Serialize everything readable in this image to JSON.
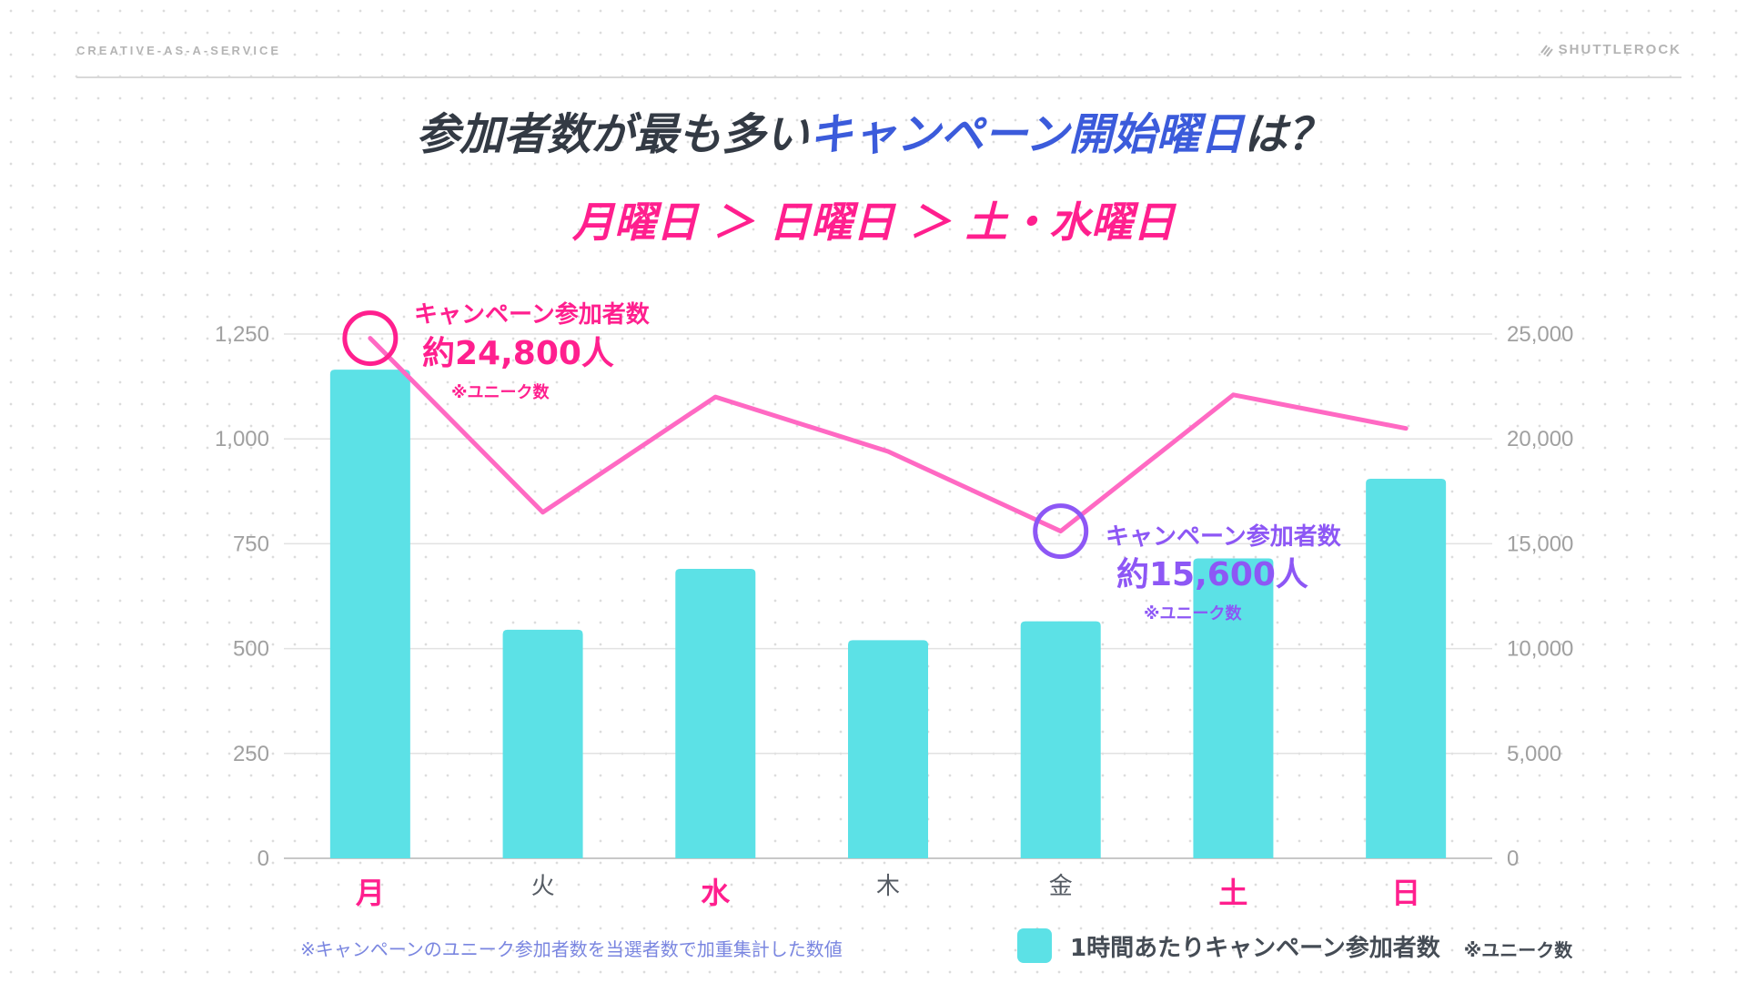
{
  "header": {
    "brand_left": "CREATIVE-AS-A-SERVICE",
    "brand_right": "SHUTTLEROCK",
    "brand_icon": "shuttlerock-logo-icon"
  },
  "title": {
    "part1": "参加者数が最も多い",
    "part2": "キャンペーン開始曜日",
    "part3": "は？"
  },
  "subtitle": "月曜日 ＞ 日曜日 ＞ 土・水曜日",
  "colors": {
    "bar": "#5ce1e6",
    "line": "#ff69c3",
    "highlight_pink": "#ff1f8e",
    "highlight_purple": "#8d57f5",
    "title_blue": "#3b5bdb",
    "axis_text": "#a0a0a0"
  },
  "chart_data": {
    "type": "bar",
    "categories": [
      "月",
      "火",
      "水",
      "木",
      "金",
      "土",
      "日"
    ],
    "highlighted_categories": [
      "月",
      "水",
      "土",
      "日"
    ],
    "series": [
      {
        "name": "1時間あたりキャンペーン参加者数",
        "axis": "left",
        "type": "bar",
        "values": [
          1165,
          545,
          690,
          520,
          565,
          715,
          905
        ]
      },
      {
        "axis": "right",
        "type": "line",
        "values": [
          24800,
          16500,
          22000,
          19400,
          15600,
          22100,
          20500
        ]
      }
    ],
    "left_axis": {
      "ylim": [
        0,
        1250
      ],
      "ticks": [
        "0",
        "250",
        "500",
        "750",
        "1,000",
        "1,250"
      ]
    },
    "right_axis": {
      "ylim": [
        0,
        25000
      ],
      "ticks": [
        "0",
        "5,000",
        "10,000",
        "15,000",
        "20,000",
        "25,000"
      ]
    },
    "grid": true,
    "annotations": [
      {
        "category": "月",
        "label": "キャンペーン参加者数",
        "value": "約24,800人",
        "note": "※ユニーク数",
        "color": "pink"
      },
      {
        "category": "金",
        "label": "キャンペーン参加者数",
        "value": "約15,600人",
        "note": "※ユニーク数",
        "color": "purple"
      }
    ]
  },
  "footnote": "※キャンペーンのユニーク参加者数を当選者数で加重集計した数値",
  "legend": {
    "label": "1時間あたりキャンペーン参加者数",
    "note": "※ユニーク数"
  }
}
